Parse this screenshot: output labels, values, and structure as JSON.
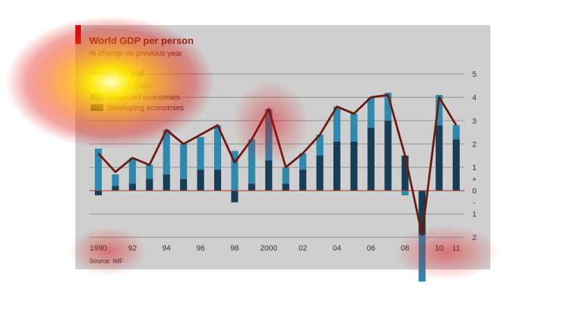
{
  "colors": {
    "panel": "#cfcfcf",
    "title": "#8a2a14",
    "accent_tab": "#c4161c",
    "advanced": "#2f88ae",
    "developing": "#173e55",
    "world_line": "#6b1a10",
    "zero_line": "#b03a30",
    "grid": "#8f8f8f"
  },
  "chart_data": {
    "type": "bar",
    "title": "World GDP per person",
    "subtitle": "% change on previous year",
    "source": "Source: IMF",
    "legend": {
      "line_label": "World total",
      "heading": "Contribution from:",
      "items": [
        "advanced economies",
        "developing economies"
      ]
    },
    "x": [
      1990,
      1991,
      1992,
      1993,
      1994,
      1995,
      1996,
      1997,
      1998,
      1999,
      2000,
      2001,
      2002,
      2003,
      2004,
      2005,
      2006,
      2007,
      2008,
      2009,
      2010,
      2011
    ],
    "x_tick_labels": [
      "1990",
      "",
      "92",
      "",
      "94",
      "",
      "96",
      "",
      "98",
      "",
      "2000",
      "",
      "02",
      "",
      "04",
      "",
      "06",
      "",
      "08",
      "",
      "10",
      "11"
    ],
    "series": [
      {
        "name": "developing economies",
        "values": [
          -0.2,
          0.2,
          0.3,
          0.5,
          0.7,
          0.5,
          0.9,
          0.9,
          -0.5,
          0.3,
          1.3,
          0.3,
          0.9,
          1.5,
          2.1,
          2.1,
          2.7,
          3.0,
          1.5,
          -1.9,
          2.8,
          2.2
        ]
      },
      {
        "name": "advanced economies",
        "values": [
          1.8,
          0.5,
          1.1,
          0.6,
          1.9,
          1.5,
          1.4,
          1.9,
          1.7,
          1.9,
          2.2,
          0.7,
          0.7,
          0.9,
          1.5,
          1.2,
          1.3,
          1.2,
          -0.2,
          -2.0,
          1.3,
          0.6
        ]
      },
      {
        "name": "World total",
        "values": [
          1.6,
          0.8,
          1.4,
          1.1,
          2.6,
          2.0,
          2.4,
          2.8,
          1.2,
          2.2,
          3.5,
          1.0,
          1.6,
          2.4,
          3.6,
          3.3,
          4.0,
          4.1,
          1.5,
          -1.9,
          4.0,
          2.8
        ]
      }
    ],
    "y_tick_labels": [
      "5",
      "4",
      "3",
      "2",
      "1",
      "+",
      "0",
      "-",
      "1",
      "2"
    ],
    "ylim": [
      -2,
      5
    ],
    "grid": true,
    "legend_placement": "top-left"
  }
}
